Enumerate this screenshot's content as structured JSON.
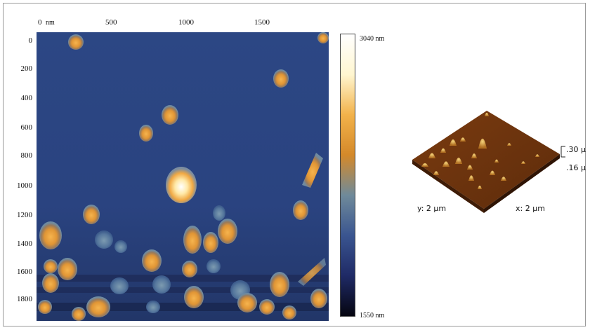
{
  "map": {
    "x_unit": "nm",
    "x_ticks": [
      "0",
      "500",
      "1000",
      "1500"
    ],
    "y_ticks": [
      "0",
      "200",
      "400",
      "600",
      "800",
      "1000",
      "1200",
      "1400",
      "1600",
      "1800"
    ]
  },
  "colorbar": {
    "max_label": "3040 nm",
    "min_label": "1550 nm",
    "colors": [
      "#050510",
      "#1f2a66",
      "#3a5590",
      "#6f8a9a",
      "#d4892a",
      "#f2b24a",
      "#fff6d0",
      "#ffffff"
    ]
  },
  "surface": {
    "y_label": "y:  2 µm",
    "x_label": "x:  2 µm",
    "z_top": ".30 µ",
    "z_bottom": ".16 µ"
  }
}
